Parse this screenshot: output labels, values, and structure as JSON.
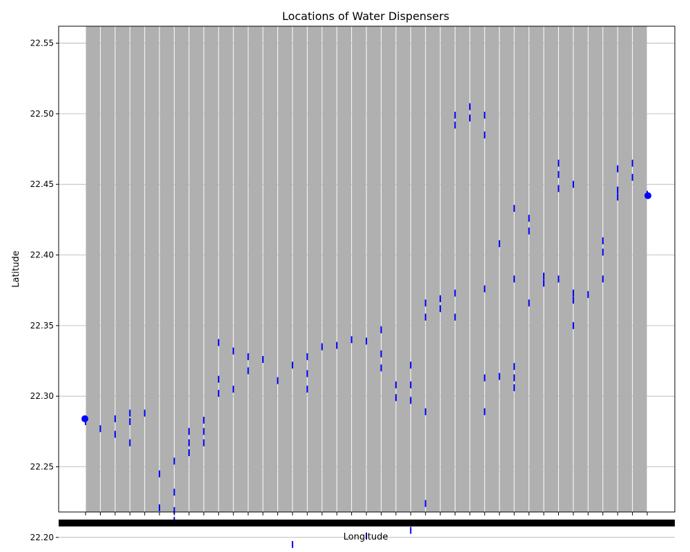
{
  "chart_data": {
    "type": "scatter",
    "title": "Locations of Water Dispensers",
    "xlabel": "Longitude",
    "ylabel": "Latitude",
    "ylim": [
      22.218,
      22.562
    ],
    "yticks": [
      "22.20",
      "22.25",
      "22.30",
      "22.35",
      "22.40",
      "22.45",
      "22.50",
      "22.55"
    ],
    "ytick_values": [
      22.2,
      22.25,
      22.3,
      22.35,
      22.4,
      22.45,
      22.5,
      22.55
    ],
    "x_categories_count": 39,
    "x_ticks_overlapping": true,
    "grid": true,
    "colors": {
      "points": "#0000ff",
      "grid": "#b0b0b0",
      "axes": "#000000"
    },
    "series": [
      {
        "points": [
          {
            "x": 0,
            "y": 22.284
          },
          {
            "x": 0,
            "y": 22.282
          },
          {
            "x": 1,
            "y": 22.277
          },
          {
            "x": 2,
            "y": 22.284
          },
          {
            "x": 2,
            "y": 22.273
          },
          {
            "x": 3,
            "y": 22.288
          },
          {
            "x": 3,
            "y": 22.282
          },
          {
            "x": 3,
            "y": 22.267
          },
          {
            "x": 4,
            "y": 22.288
          },
          {
            "x": 5,
            "y": 22.245
          },
          {
            "x": 5,
            "y": 22.221
          },
          {
            "x": 6,
            "y": 22.254
          },
          {
            "x": 6,
            "y": 22.232
          },
          {
            "x": 6,
            "y": 22.219
          },
          {
            "x": 6,
            "y": 22.212
          },
          {
            "x": 7,
            "y": 22.275
          },
          {
            "x": 7,
            "y": 22.267
          },
          {
            "x": 7,
            "y": 22.26
          },
          {
            "x": 8,
            "y": 22.283
          },
          {
            "x": 8,
            "y": 22.275
          },
          {
            "x": 8,
            "y": 22.267
          },
          {
            "x": 9,
            "y": 22.338
          },
          {
            "x": 9,
            "y": 22.312
          },
          {
            "x": 9,
            "y": 22.302
          },
          {
            "x": 10,
            "y": 22.332
          },
          {
            "x": 10,
            "y": 22.305
          },
          {
            "x": 11,
            "y": 22.328
          },
          {
            "x": 11,
            "y": 22.318
          },
          {
            "x": 12,
            "y": 22.326
          },
          {
            "x": 13,
            "y": 22.311
          },
          {
            "x": 14,
            "y": 22.322
          },
          {
            "x": 14,
            "y": 22.195
          },
          {
            "x": 15,
            "y": 22.328
          },
          {
            "x": 15,
            "y": 22.316
          },
          {
            "x": 15,
            "y": 22.305
          },
          {
            "x": 16,
            "y": 22.335
          },
          {
            "x": 17,
            "y": 22.336
          },
          {
            "x": 18,
            "y": 22.34
          },
          {
            "x": 19,
            "y": 22.339
          },
          {
            "x": 19,
            "y": 22.201
          },
          {
            "x": 20,
            "y": 22.347
          },
          {
            "x": 20,
            "y": 22.33
          },
          {
            "x": 20,
            "y": 22.32
          },
          {
            "x": 21,
            "y": 22.308
          },
          {
            "x": 21,
            "y": 22.299
          },
          {
            "x": 22,
            "y": 22.322
          },
          {
            "x": 22,
            "y": 22.308
          },
          {
            "x": 22,
            "y": 22.297
          },
          {
            "x": 22,
            "y": 22.205
          },
          {
            "x": 23,
            "y": 22.366
          },
          {
            "x": 23,
            "y": 22.356
          },
          {
            "x": 23,
            "y": 22.289
          },
          {
            "x": 23,
            "y": 22.224
          },
          {
            "x": 24,
            "y": 22.369
          },
          {
            "x": 24,
            "y": 22.362
          },
          {
            "x": 25,
            "y": 22.499
          },
          {
            "x": 25,
            "y": 22.492
          },
          {
            "x": 25,
            "y": 22.373
          },
          {
            "x": 25,
            "y": 22.356
          },
          {
            "x": 26,
            "y": 22.505
          },
          {
            "x": 26,
            "y": 22.497
          },
          {
            "x": 27,
            "y": 22.499
          },
          {
            "x": 27,
            "y": 22.485
          },
          {
            "x": 27,
            "y": 22.376
          },
          {
            "x": 27,
            "y": 22.313
          },
          {
            "x": 27,
            "y": 22.289
          },
          {
            "x": 28,
            "y": 22.408
          },
          {
            "x": 28,
            "y": 22.314
          },
          {
            "x": 29,
            "y": 22.433
          },
          {
            "x": 29,
            "y": 22.383
          },
          {
            "x": 29,
            "y": 22.321
          },
          {
            "x": 29,
            "y": 22.313
          },
          {
            "x": 29,
            "y": 22.306
          },
          {
            "x": 30,
            "y": 22.426
          },
          {
            "x": 30,
            "y": 22.417
          },
          {
            "x": 30,
            "y": 22.366
          },
          {
            "x": 31,
            "y": 22.385
          },
          {
            "x": 31,
            "y": 22.38
          },
          {
            "x": 32,
            "y": 22.465
          },
          {
            "x": 32,
            "y": 22.457
          },
          {
            "x": 32,
            "y": 22.447
          },
          {
            "x": 32,
            "y": 22.383
          },
          {
            "x": 33,
            "y": 22.45
          },
          {
            "x": 33,
            "y": 22.373
          },
          {
            "x": 33,
            "y": 22.368
          },
          {
            "x": 33,
            "y": 22.35
          },
          {
            "x": 34,
            "y": 22.372
          },
          {
            "x": 35,
            "y": 22.41
          },
          {
            "x": 35,
            "y": 22.402
          },
          {
            "x": 35,
            "y": 22.383
          },
          {
            "x": 36,
            "y": 22.461
          },
          {
            "x": 36,
            "y": 22.446
          },
          {
            "x": 36,
            "y": 22.441
          },
          {
            "x": 37,
            "y": 22.465
          },
          {
            "x": 37,
            "y": 22.455
          },
          {
            "x": 38,
            "y": 22.443
          },
          {
            "x": 38,
            "y": 22.442
          }
        ]
      }
    ]
  }
}
